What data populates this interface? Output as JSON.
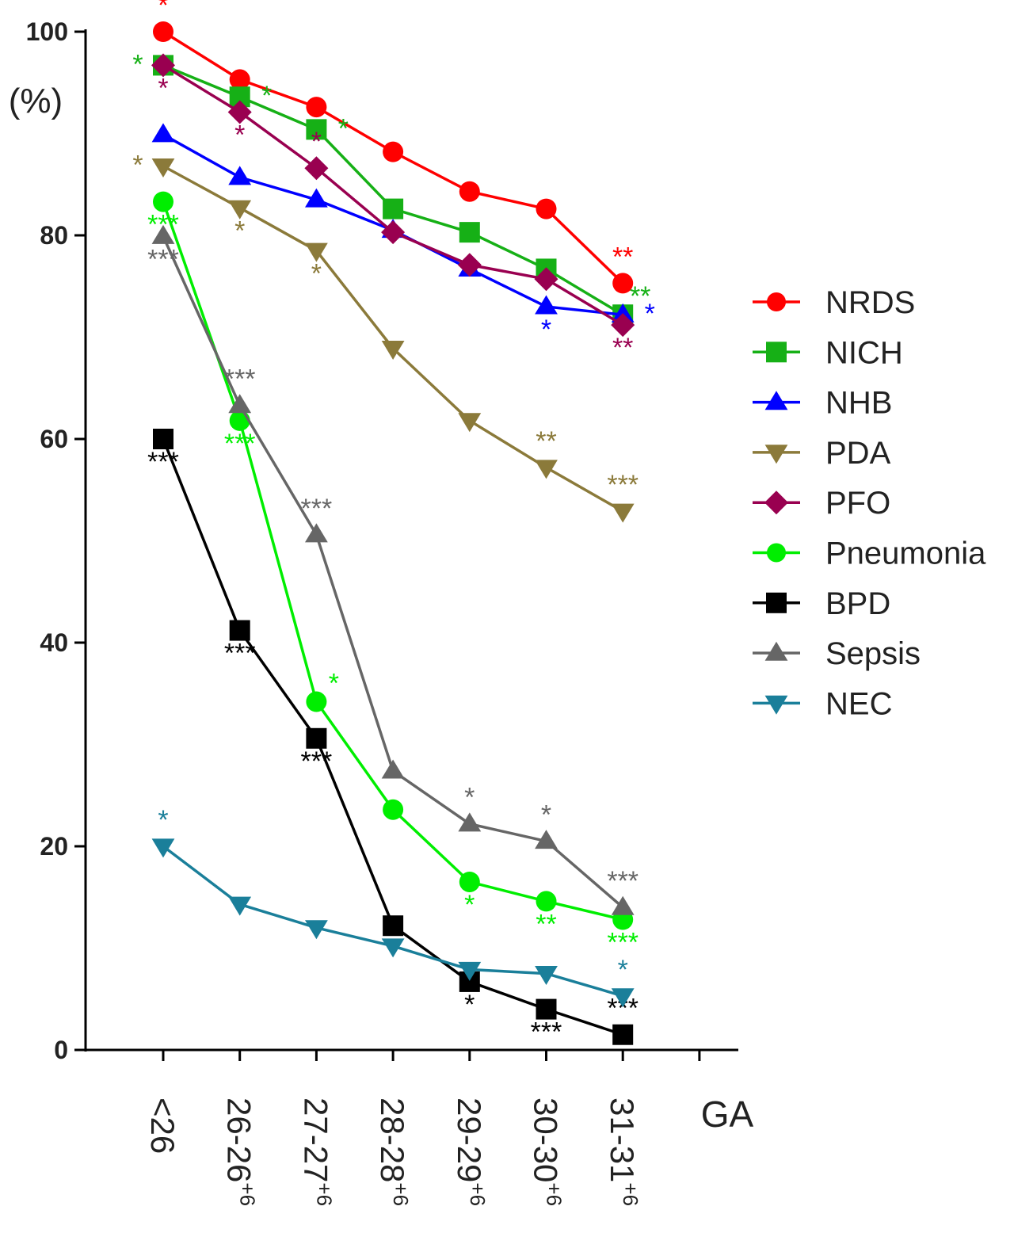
{
  "chart_data": {
    "type": "line",
    "title": "",
    "ylabel": "(%)",
    "xlabel": "GA",
    "ylim": [
      0,
      100
    ],
    "yticks": [
      0,
      20,
      40,
      60,
      80,
      100
    ],
    "categories": [
      "<26",
      "26-26+6",
      "27-27+6",
      "28-28+6",
      "29-29+6",
      "30-30+6",
      "31-31+6"
    ],
    "grid": false,
    "legend_position": "right",
    "series": [
      {
        "name": "NRDS",
        "color": "#ff0000",
        "marker": "circle",
        "values": [
          100,
          95.3,
          92.6,
          88.2,
          84.3,
          82.6,
          75.3
        ],
        "annotations": [
          {
            "i": 0,
            "text": "*",
            "pos": "above"
          },
          {
            "i": 6,
            "text": "**",
            "pos": "above"
          }
        ]
      },
      {
        "name": "NICH",
        "color": "#16b016",
        "marker": "square",
        "values": [
          96.7,
          93.6,
          90.4,
          82.6,
          80.3,
          76.7,
          72.2
        ],
        "annotations": [
          {
            "i": 0,
            "text": "*",
            "pos": "left"
          },
          {
            "i": 1,
            "text": "*",
            "pos": "right"
          },
          {
            "i": 2,
            "text": "*",
            "pos": "right"
          },
          {
            "i": 6,
            "text": "**",
            "pos": "above-right"
          }
        ]
      },
      {
        "name": "NHB",
        "color": "#0000ff",
        "marker": "triangle-up",
        "values": [
          89.9,
          85.7,
          83.5,
          80.5,
          76.7,
          73.0,
          72.2
        ],
        "annotations": [
          {
            "i": 5,
            "text": "*",
            "pos": "below"
          },
          {
            "i": 6,
            "text": "*",
            "pos": "right"
          }
        ]
      },
      {
        "name": "PDA",
        "color": "#8b7a3a",
        "marker": "triangle-down",
        "values": [
          86.8,
          82.7,
          78.5,
          68.9,
          61.8,
          57.2,
          52.9
        ],
        "annotations": [
          {
            "i": 0,
            "text": "*",
            "pos": "left"
          },
          {
            "i": 1,
            "text": "*",
            "pos": "below"
          },
          {
            "i": 2,
            "text": "*",
            "pos": "below"
          },
          {
            "i": 5,
            "text": "**",
            "pos": "above"
          },
          {
            "i": 6,
            "text": "***",
            "pos": "above"
          }
        ]
      },
      {
        "name": "PFO",
        "color": "#990050",
        "marker": "diamond",
        "values": [
          96.7,
          92.1,
          86.6,
          80.3,
          77.1,
          75.7,
          71.2
        ],
        "annotations": [
          {
            "i": 0,
            "text": "*",
            "pos": "below"
          },
          {
            "i": 1,
            "text": "*",
            "pos": "below"
          },
          {
            "i": 2,
            "text": "*",
            "pos": "above"
          },
          {
            "i": 6,
            "text": "**",
            "pos": "below"
          }
        ]
      },
      {
        "name": "Pneumonia",
        "color": "#00ee00",
        "marker": "circle",
        "values": [
          83.3,
          61.8,
          34.2,
          23.6,
          16.5,
          14.6,
          12.8
        ],
        "annotations": [
          {
            "i": 0,
            "text": "***",
            "pos": "below"
          },
          {
            "i": 1,
            "text": "***",
            "pos": "below"
          },
          {
            "i": 2,
            "text": "*",
            "pos": "above-right"
          },
          {
            "i": 4,
            "text": "*",
            "pos": "below"
          },
          {
            "i": 5,
            "text": "**",
            "pos": "below"
          },
          {
            "i": 6,
            "text": "***",
            "pos": "below"
          }
        ]
      },
      {
        "name": "BPD",
        "color": "#000000",
        "marker": "square",
        "values": [
          60.0,
          41.2,
          30.6,
          12.2,
          6.7,
          4.0,
          1.5
        ],
        "annotations": [
          {
            "i": 0,
            "text": "***",
            "pos": "below"
          },
          {
            "i": 1,
            "text": "***",
            "pos": "below"
          },
          {
            "i": 2,
            "text": "***",
            "pos": "below"
          },
          {
            "i": 4,
            "text": "*",
            "pos": "below"
          },
          {
            "i": 5,
            "text": "***",
            "pos": "below"
          },
          {
            "i": 6,
            "text": "***",
            "pos": "above"
          }
        ]
      },
      {
        "name": "Sepsis",
        "color": "#666666",
        "marker": "triangle-up",
        "values": [
          79.9,
          63.3,
          50.6,
          27.4,
          22.2,
          20.5,
          14.0
        ],
        "annotations": [
          {
            "i": 0,
            "text": "***",
            "pos": "below"
          },
          {
            "i": 1,
            "text": "***",
            "pos": "above"
          },
          {
            "i": 2,
            "text": "***",
            "pos": "above"
          },
          {
            "i": 4,
            "text": "*",
            "pos": "above"
          },
          {
            "i": 5,
            "text": "*",
            "pos": "above"
          },
          {
            "i": 6,
            "text": "***",
            "pos": "above"
          }
        ]
      },
      {
        "name": "NEC",
        "color": "#1a7f9a",
        "marker": "triangle-down",
        "values": [
          20.0,
          14.3,
          12.0,
          10.2,
          7.9,
          7.5,
          5.3
        ],
        "annotations": [
          {
            "i": 0,
            "text": "*",
            "pos": "above"
          },
          {
            "i": 6,
            "text": "*",
            "pos": "above"
          }
        ]
      }
    ]
  }
}
